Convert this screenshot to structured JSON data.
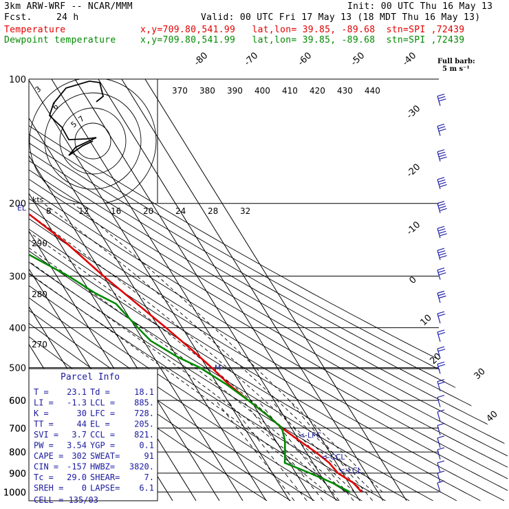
{
  "header": {
    "model": "3km ARW-WRF -- NCAR/MMM",
    "init": "Init: 00 UTC Thu 16 May 13",
    "fcst_label": "Fcst.",
    "fcst_value": "24 h",
    "valid": "Valid: 00 UTC Fri 17 May 13 (18 MDT Thu 16 May 13)",
    "temp_label": "Temperature",
    "temp_loc": "x,y=709.80,541.99   lat,lon= 39.85, -89.68  stn=SPI ,72439",
    "dew_label": "Dewpoint temperature",
    "dew_loc": "x,y=709.80,541.99   lat,lon= 39.85, -89.68  stn=SPI ,72439"
  },
  "colors": {
    "temperature": "#e00000",
    "dewpoint": "#008a00",
    "barbs": "#2222aa",
    "hodograph": "#000000"
  },
  "chart_data": {
    "type": "line",
    "title": "Skew-T log-P diagram",
    "pressure_levels": [
      100,
      200,
      300,
      400,
      500,
      600,
      700,
      800,
      900,
      1000
    ],
    "ylim": [
      1000,
      100
    ],
    "skewed_isotherms": [
      -80,
      -70,
      -60,
      -50,
      -40,
      -30,
      -20,
      -10,
      0,
      10,
      20,
      30,
      40
    ],
    "theta_labels": [
      370,
      380,
      390,
      400,
      410,
      420,
      430,
      440
    ],
    "theta_left_labels": [
      290,
      280,
      270
    ],
    "mixing_ratio_labels": [
      2,
      3,
      5,
      8,
      12,
      20
    ],
    "hodograph_speed_labels": [
      8,
      12,
      16,
      20,
      24,
      28,
      32
    ],
    "hodograph_units": "kts",
    "hodograph_ring_labels": [
      "3",
      "6",
      "5",
      "7"
    ],
    "barb_legend": "Full barb:\n5 m s⁻¹",
    "level_markers": [
      {
        "label": "EL",
        "p": 205
      },
      {
        "label": "M",
        "p": 500
      },
      {
        "label": "<-LFC",
        "p": 728
      },
      {
        "label": "<-CCL",
        "p": 821
      },
      {
        "label": "<-LCL",
        "p": 885
      }
    ],
    "series": [
      {
        "name": "Temperature",
        "points": [
          [
            100,
            -58
          ],
          [
            130,
            -60
          ],
          [
            160,
            -57
          ],
          [
            180,
            -55
          ],
          [
            200,
            -50
          ],
          [
            210,
            -46
          ],
          [
            250,
            -37
          ],
          [
            300,
            -30
          ],
          [
            350,
            -23
          ],
          [
            400,
            -17
          ],
          [
            450,
            -12
          ],
          [
            500,
            -8
          ],
          [
            550,
            -5
          ],
          [
            600,
            -1
          ],
          [
            650,
            3
          ],
          [
            700,
            6
          ],
          [
            750,
            10
          ],
          [
            800,
            14
          ],
          [
            850,
            17
          ],
          [
            900,
            18
          ],
          [
            925,
            20
          ],
          [
            950,
            22
          ],
          [
            1000,
            23.1
          ]
        ]
      },
      {
        "name": "Dewpoint temperature",
        "points": [
          [
            100,
            -85
          ],
          [
            130,
            -85
          ],
          [
            160,
            -84
          ],
          [
            180,
            -83
          ],
          [
            200,
            -82
          ],
          [
            250,
            -62
          ],
          [
            300,
            -45
          ],
          [
            330,
            -38
          ],
          [
            350,
            -32
          ],
          [
            400,
            -29
          ],
          [
            430,
            -27
          ],
          [
            470,
            -20
          ],
          [
            500,
            -13
          ],
          [
            550,
            -6
          ],
          [
            600,
            -1
          ],
          [
            650,
            3
          ],
          [
            700,
            6
          ],
          [
            750,
            4
          ],
          [
            800,
            1
          ],
          [
            850,
            -2
          ],
          [
            900,
            6
          ],
          [
            950,
            13
          ],
          [
            1000,
            18.1
          ]
        ]
      }
    ],
    "wind_barbs": [
      {
        "p": 110,
        "flags": 0,
        "full": 3
      },
      {
        "p": 130,
        "flags": 0,
        "full": 3
      },
      {
        "p": 150,
        "flags": 0,
        "full": 4
      },
      {
        "p": 175,
        "flags": 0,
        "full": 4
      },
      {
        "p": 200,
        "flags": 0,
        "full": 4
      },
      {
        "p": 230,
        "flags": 0,
        "full": 4
      },
      {
        "p": 260,
        "flags": 0,
        "full": 4
      },
      {
        "p": 290,
        "flags": 0,
        "full": 3
      },
      {
        "p": 330,
        "flags": 0,
        "full": 3
      },
      {
        "p": 370,
        "flags": 0,
        "full": 2
      },
      {
        "p": 410,
        "flags": 0,
        "full": 2
      },
      {
        "p": 450,
        "flags": 0,
        "full": 2
      },
      {
        "p": 490,
        "flags": 0,
        "full": 2
      },
      {
        "p": 540,
        "flags": 0,
        "full": 2
      },
      {
        "p": 590,
        "flags": 0,
        "full": 1
      },
      {
        "p": 640,
        "flags": 0,
        "full": 1
      },
      {
        "p": 690,
        "flags": 0,
        "full": 1
      },
      {
        "p": 740,
        "flags": 0,
        "full": 1
      },
      {
        "p": 790,
        "flags": 0,
        "full": 1
      },
      {
        "p": 850,
        "flags": 0,
        "full": 1
      },
      {
        "p": 900,
        "flags": 0,
        "full": 1
      },
      {
        "p": 950,
        "flags": 0,
        "full": 1
      }
    ]
  },
  "parcel_info": {
    "title": "Parcel Info",
    "rows": [
      [
        "T   =",
        "23.1",
        "Td =",
        "18.1"
      ],
      [
        "LI  =",
        "-1.3",
        "LCL =",
        "885."
      ],
      [
        "K   =",
        "30",
        "LFC =",
        "728."
      ],
      [
        "TT  =",
        "44",
        "EL  =",
        "205."
      ],
      [
        "SVI =",
        "3.7",
        "CCL =",
        "821."
      ],
      [
        "PW  =",
        "3.54",
        "YGP =",
        "0.1"
      ],
      [
        "CAPE =",
        "302",
        "SWEAT=",
        "91"
      ],
      [
        "CIN  =",
        "-157",
        "HWBZ=",
        "3820."
      ],
      [
        "Tc  =",
        "29.0",
        "SHEAR=",
        "7."
      ],
      [
        "SREH =",
        "0",
        "LAPSE=",
        "6.1"
      ]
    ],
    "cell": "CELL = 135/03"
  }
}
